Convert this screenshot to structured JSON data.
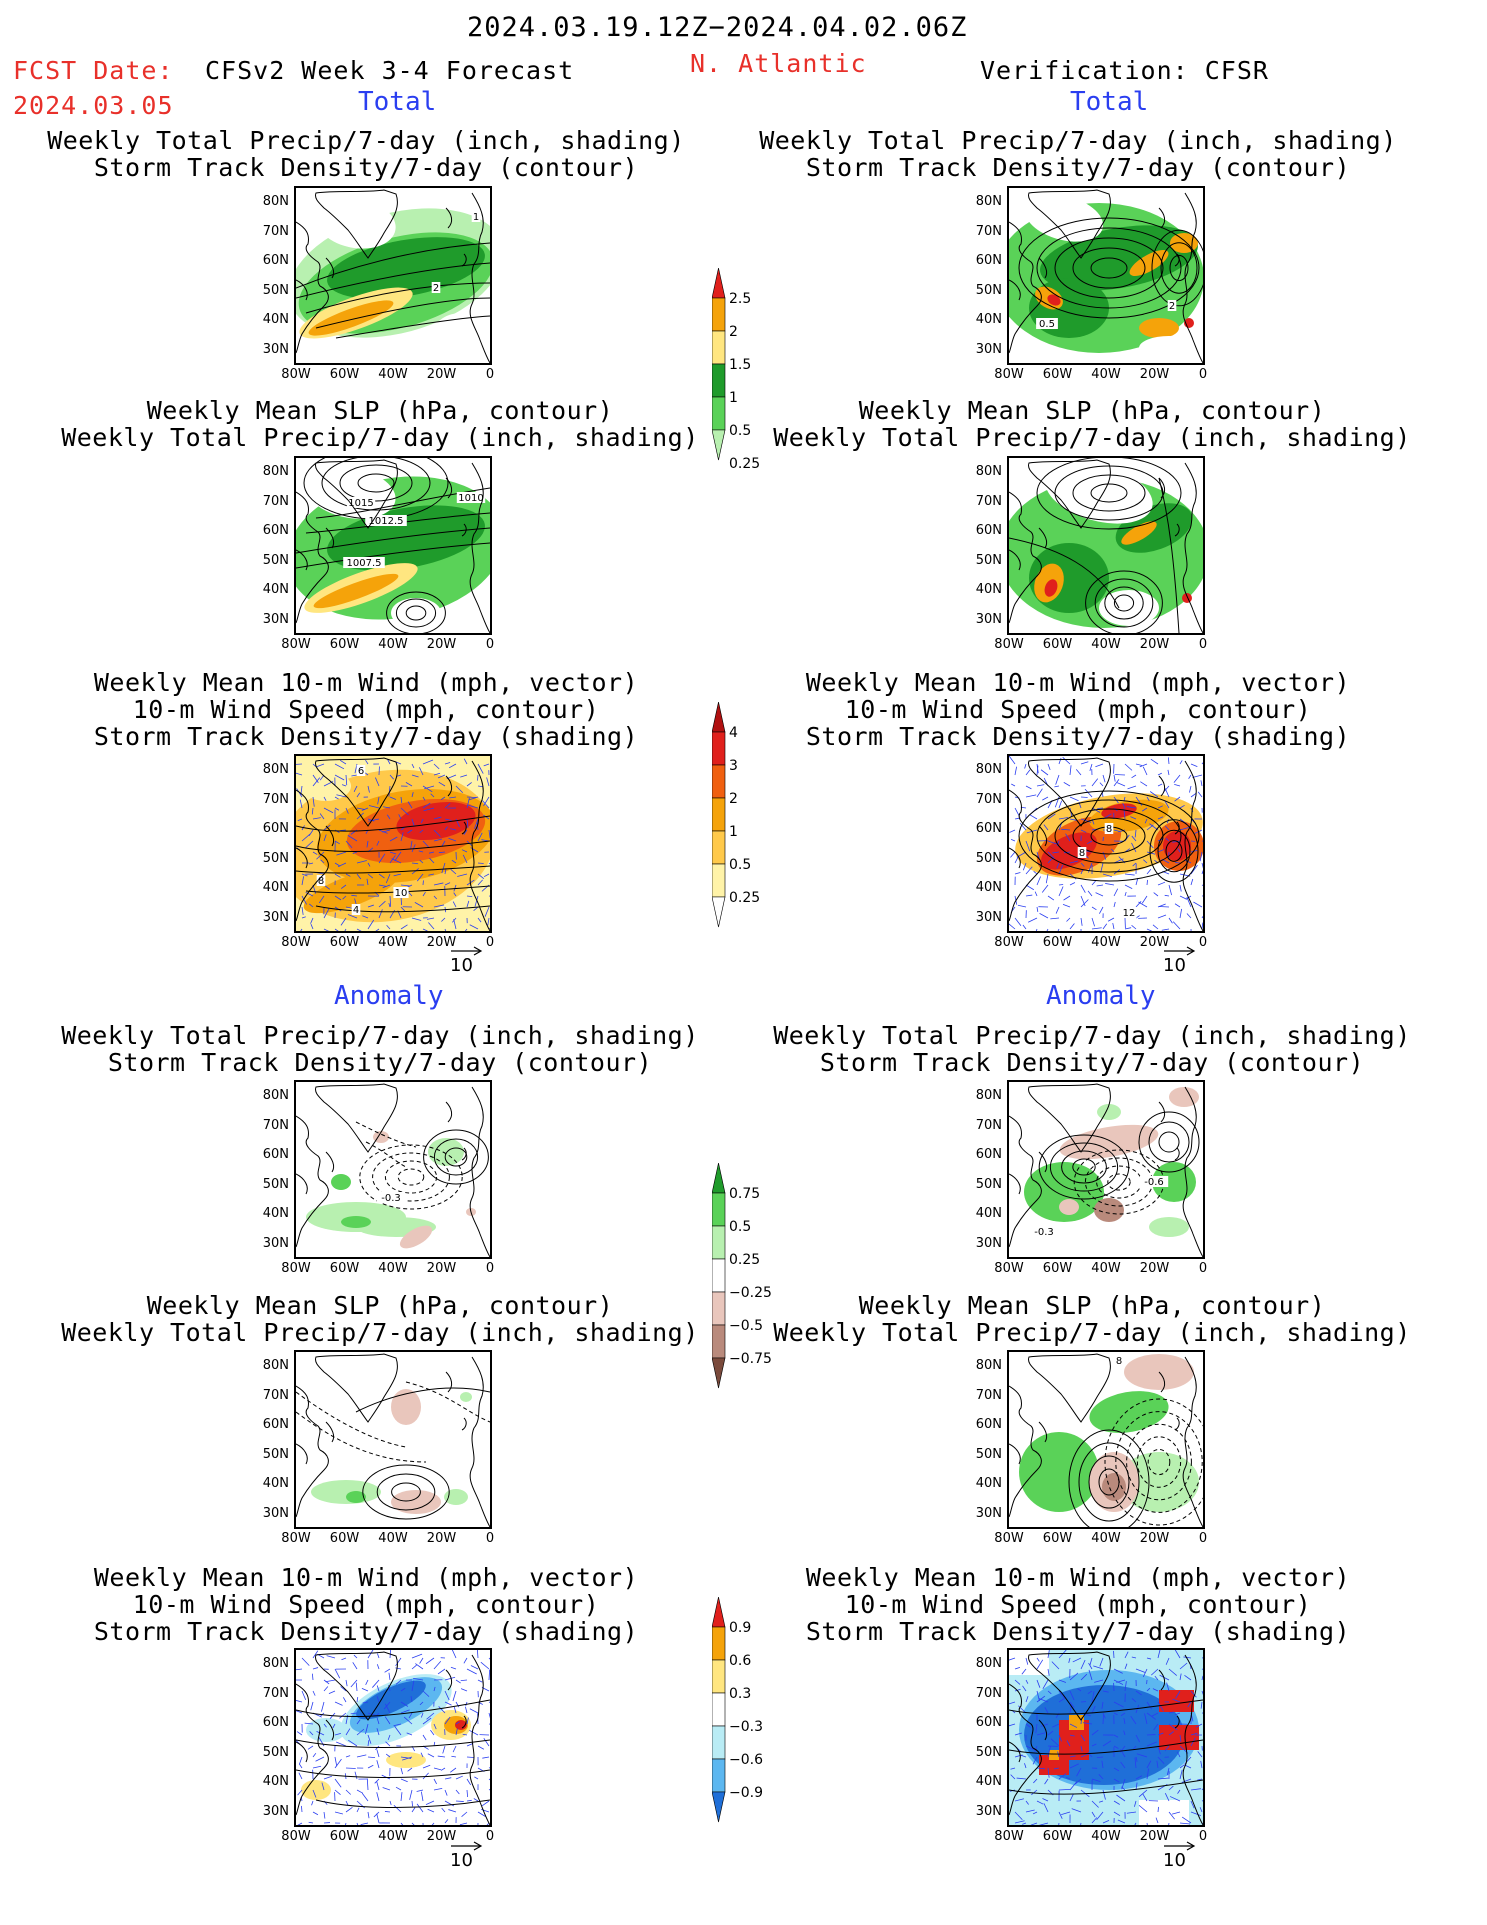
{
  "header": {
    "period": "2024.03.19.12Z−2024.04.02.06Z",
    "fcst_label": "FCST Date:",
    "fcst_date": "2024.03.05",
    "model_title": "CFSv2 Week 3-4 Forecast",
    "region": "N. Atlantic",
    "verification": "Verification: CFSR"
  },
  "sections": {
    "total": "Total",
    "anomaly": "Anomaly"
  },
  "titles": {
    "precip_track": [
      "Weekly Total Precip/7-day (inch, shading)",
      "Storm Track Density/7-day (contour)"
    ],
    "slp_precip": [
      "Weekly Mean SLP (hPa, contour)",
      "Weekly Total Precip/7-day (inch, shading)"
    ],
    "wind_track": [
      "Weekly Mean 10-m Wind (mph, vector)",
      "10-m Wind Speed (mph, contour)",
      "Storm Track Density/7-day (shading)"
    ]
  },
  "axes": {
    "lat_ticks": [
      "80N",
      "70N",
      "60N",
      "50N",
      "40N",
      "30N"
    ],
    "lon_ticks": [
      "80W",
      "60W",
      "40W",
      "20W",
      "0"
    ]
  },
  "vector_ref": "10",
  "contour_labels": {
    "p1": [
      "1",
      "2"
    ],
    "p2": [
      "1015",
      "1012.5",
      "1010",
      "1007.5"
    ],
    "p3": [
      "8",
      "10",
      "6",
      "4"
    ],
    "q1": [
      "2",
      "0.5"
    ],
    "q3": [
      "8",
      "8",
      "12"
    ],
    "a1": [
      "-0.3"
    ],
    "b1": [
      "-0.6",
      "-0.3"
    ],
    "b2": [
      "8"
    ]
  },
  "colorbars": [
    {
      "name": "total-precip",
      "labels": [
        "2.5",
        "2",
        "1.5",
        "1",
        "0.5",
        "0.25"
      ],
      "colors": [
        "#e0201c",
        "#f5a30a",
        "#ffe680",
        "#1f9b2b",
        "#5ad258",
        "#b8f0b0"
      ]
    },
    {
      "name": "total-track",
      "labels": [
        "4",
        "3",
        "2",
        "1",
        "0.5",
        "0.25"
      ],
      "colors": [
        "#b01010",
        "#e0201c",
        "#f06010",
        "#f5a30a",
        "#ffc94a",
        "#fff3a8",
        "#ffffff"
      ]
    },
    {
      "name": "anom-precip",
      "labels": [
        "0.75",
        "0.5",
        "0.25",
        "−0.25",
        "−0.5",
        "−0.75"
      ],
      "colors": [
        "#1f9b2b",
        "#5ad258",
        "#b8f0b0",
        "#ffffff",
        "#e9c6bc",
        "#b98a7c",
        "#7a4a3c"
      ]
    },
    {
      "name": "anom-track",
      "labels": [
        "0.9",
        "0.6",
        "0.3",
        "−0.3",
        "−0.6",
        "−0.9"
      ],
      "colors": [
        "#e0201c",
        "#f5a30a",
        "#ffe680",
        "#ffffff",
        "#b9ecf5",
        "#5cb7f0",
        "#1f6fd8"
      ]
    }
  ]
}
